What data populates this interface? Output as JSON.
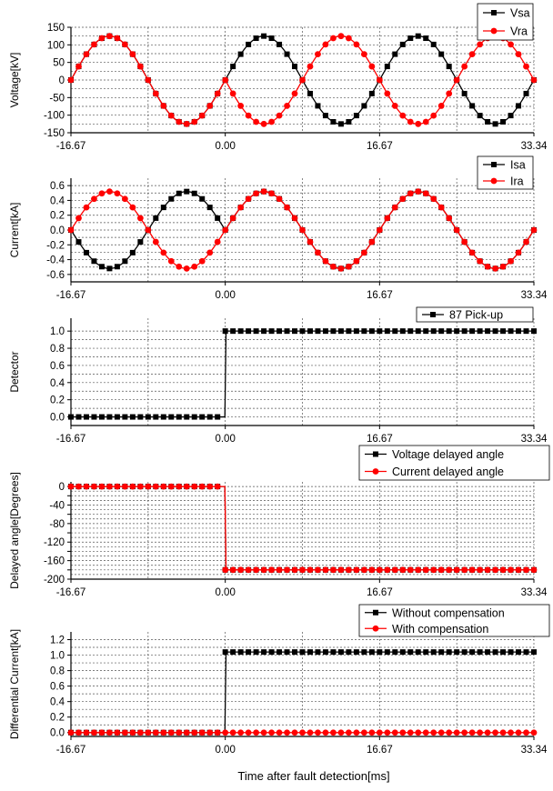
{
  "xlabel": "Time after fault detection[ms]",
  "x_ticks": [
    "-16.67",
    "0.00",
    "16.67",
    "33.34"
  ],
  "colors": {
    "black": "#000000",
    "red": "#ff0000",
    "grid": "#555555"
  },
  "chart_data": [
    {
      "type": "line",
      "ylabel": "Voltage[kV]",
      "xlim": [
        -16.67,
        33.34
      ],
      "ylim": [
        -150,
        150
      ],
      "yticks": [
        -150,
        -100,
        -50,
        0,
        50,
        100,
        150
      ],
      "y_tick_labels": [
        "-150",
        "-100",
        "-50",
        "0",
        "50",
        "100",
        "150"
      ],
      "legend_position": "top-right",
      "series": [
        {
          "name": "Vsa",
          "color": "#000000",
          "marker": "square",
          "fn": "sine",
          "amplitude": 125,
          "period_ms": 16.67,
          "phase_deg": 0,
          "fn_after_zero": "sine",
          "amplitude_after": 125,
          "phase_after_deg": 0
        },
        {
          "name": "Vra",
          "color": "#ff0000",
          "marker": "circle",
          "fn": "sine",
          "amplitude": 125,
          "period_ms": 16.67,
          "phase_deg": 0,
          "fn_after_zero": "sine",
          "amplitude_after": 125,
          "phase_after_deg": 180
        }
      ]
    },
    {
      "type": "line",
      "ylabel": "Current[kA]",
      "xlim": [
        -16.67,
        33.34
      ],
      "ylim": [
        -0.7,
        0.7
      ],
      "yticks": [
        -0.6,
        -0.4,
        -0.2,
        0.0,
        0.2,
        0.4,
        0.6
      ],
      "y_tick_labels": [
        "-0.6",
        "-0.4",
        "-0.2",
        "0.0",
        "0.2",
        "0.4",
        "0.6"
      ],
      "legend_position": "top-right",
      "series": [
        {
          "name": "Isa",
          "color": "#000000",
          "marker": "square",
          "fn": "sine",
          "amplitude": 0.52,
          "period_ms": 16.67,
          "phase_deg": 180,
          "fn_after_zero": "sine",
          "amplitude_after": 0.52,
          "phase_after_deg": 0
        },
        {
          "name": "Ira",
          "color": "#ff0000",
          "marker": "circle",
          "fn": "sine",
          "amplitude": 0.52,
          "period_ms": 16.67,
          "phase_deg": 0,
          "fn_after_zero": "sine",
          "amplitude_after": 0.52,
          "phase_after_deg": 0
        }
      ]
    },
    {
      "type": "line",
      "ylabel": "Detector",
      "xlim": [
        -16.67,
        33.34
      ],
      "ylim": [
        -0.1,
        1.15
      ],
      "yticks": [
        0.0,
        0.2,
        0.4,
        0.6,
        0.8,
        1.0
      ],
      "y_tick_labels": [
        "0.0",
        "0.2",
        "0.4",
        "0.6",
        "0.8",
        "1.0"
      ],
      "legend_position": "top-right",
      "series": [
        {
          "name": "87 Pick-up",
          "color": "#000000",
          "marker": "square",
          "fn": "step",
          "value_before": 0,
          "value_after": 1
        }
      ]
    },
    {
      "type": "line",
      "ylabel": "Delayed angle[Degrees]",
      "xlim": [
        -16.67,
        33.34
      ],
      "ylim": [
        -200,
        10
      ],
      "yticks": [
        -200,
        -180,
        -160,
        -140,
        -120,
        -100,
        -80,
        -60,
        -40,
        -20,
        0
      ],
      "y_tick_labels": [
        "-200",
        "",
        "-160",
        "",
        "-120",
        "",
        "-80",
        "",
        "-40",
        "",
        "0"
      ],
      "legend_position": "top-right",
      "series": [
        {
          "name": "Voltage delayed angle",
          "color": "#000000",
          "marker": "square",
          "fn": "step",
          "value_before": 0,
          "value_after": -180
        },
        {
          "name": "Current delayed angle",
          "color": "#ff0000",
          "marker": "circle",
          "fn": "step",
          "value_before": 0,
          "value_after": -180
        }
      ]
    },
    {
      "type": "line",
      "ylabel": "Differential Current[kA]",
      "xlim": [
        -16.67,
        33.34
      ],
      "ylim": [
        -0.05,
        1.3
      ],
      "yticks": [
        0.0,
        0.2,
        0.4,
        0.6,
        0.8,
        1.0,
        1.2
      ],
      "y_tick_labels": [
        "0.0",
        "0.2",
        "0.4",
        "0.6",
        "0.8",
        "1.0",
        "1.2"
      ],
      "legend_position": "top-right",
      "series": [
        {
          "name": "Without compensation",
          "color": "#000000",
          "marker": "square",
          "fn": "step",
          "value_before": 0,
          "value_after": 1.04
        },
        {
          "name": "With compensation",
          "color": "#ff0000",
          "marker": "circle",
          "fn": "step",
          "value_before": 0,
          "value_after": 0
        }
      ]
    }
  ]
}
